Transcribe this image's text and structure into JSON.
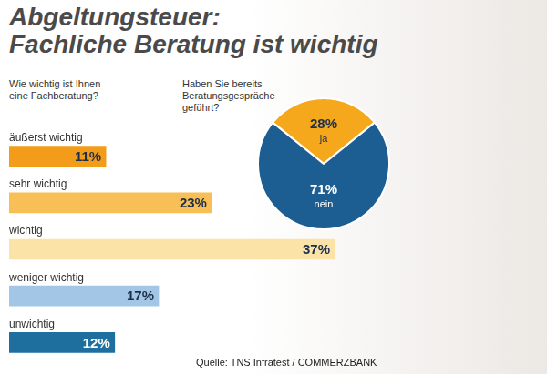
{
  "title": [
    "Abgeltungsteuer:",
    "Fachliche Beratung ist wichtig"
  ],
  "source": "Quelle: TNS Infratest / COMMERZBANK",
  "chart_data": [
    {
      "type": "bar",
      "orientation": "horizontal",
      "title": [
        "Wie wichtig ist Ihnen",
        "eine Fachberatung?"
      ],
      "categories": [
        "äußerst wichtig",
        "sehr wichtig",
        "wichtig",
        "weniger wichtig",
        "unwichtig"
      ],
      "values": [
        11,
        23,
        37,
        17,
        12
      ],
      "value_labels": [
        "11%",
        "23%",
        "37%",
        "17%",
        "12%"
      ],
      "colors": [
        "#f39c1a",
        "#f7bf55",
        "#fbe3a8",
        "#a3c6e6",
        "#1f6f9e"
      ],
      "xlim": [
        0,
        40
      ],
      "tick_labels": false,
      "grid": false,
      "data_labels": true
    },
    {
      "type": "pie",
      "title": [
        "Haben Sie bereits",
        "Beratungsgespräche",
        "geführt?"
      ],
      "categories": [
        "ja",
        "nein"
      ],
      "values": [
        28,
        71
      ],
      "value_labels": [
        "28%",
        "71%"
      ],
      "colors": [
        "#f5a81c",
        "#1c5d92"
      ],
      "data_labels": true
    }
  ]
}
